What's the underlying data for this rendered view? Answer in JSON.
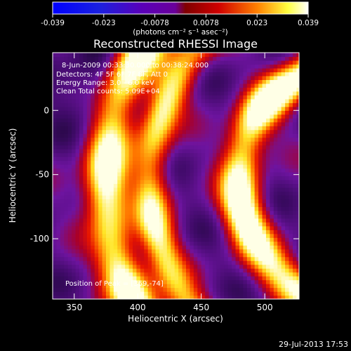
{
  "colorbar": {
    "ticks": [
      "-0.039",
      "-0.023",
      "-0.0078",
      "0.0078",
      "0.023",
      "0.039"
    ],
    "units": "(photons cm⁻² s⁻¹ asec⁻²)",
    "range": [
      -0.039,
      0.039
    ]
  },
  "chart_data": {
    "type": "heatmap",
    "title": "Reconstructed RHESSI Image",
    "xlabel": "Heliocentric X (arcsec)",
    "ylabel": "Heliocentric Y (arcsec)",
    "xlim": [
      333,
      527
    ],
    "ylim": [
      -147,
      45
    ],
    "xticks": [
      "350",
      "400",
      "450",
      "500"
    ],
    "yticks": [
      "0",
      "-50",
      "-100"
    ],
    "annotations": [
      "8-Jun-2009 00:33:30.000 to 00:38:24.000",
      "Detectors: 4F 5F 6F 7F 8F, Att 0",
      "Energy Range: 3.0 - 6.0 keV",
      "Clean     Total counts: 5.09E+04"
    ],
    "peak_label": "Position of Peak = [369,-74]",
    "peak": [
      369,
      -74
    ],
    "arcs": [
      {
        "cx": 575,
        "cy": -55,
        "r": 200,
        "width": 12,
        "intensity": 0.92
      },
      {
        "cx": 575,
        "cy": -55,
        "r": 165,
        "width": 10,
        "intensity": 0.72
      },
      {
        "cx": 575,
        "cy": -55,
        "r": 95,
        "width": 11,
        "intensity": 0.98
      }
    ]
  },
  "footer": {
    "timestamp": "29-Jul-2013 17:53"
  }
}
